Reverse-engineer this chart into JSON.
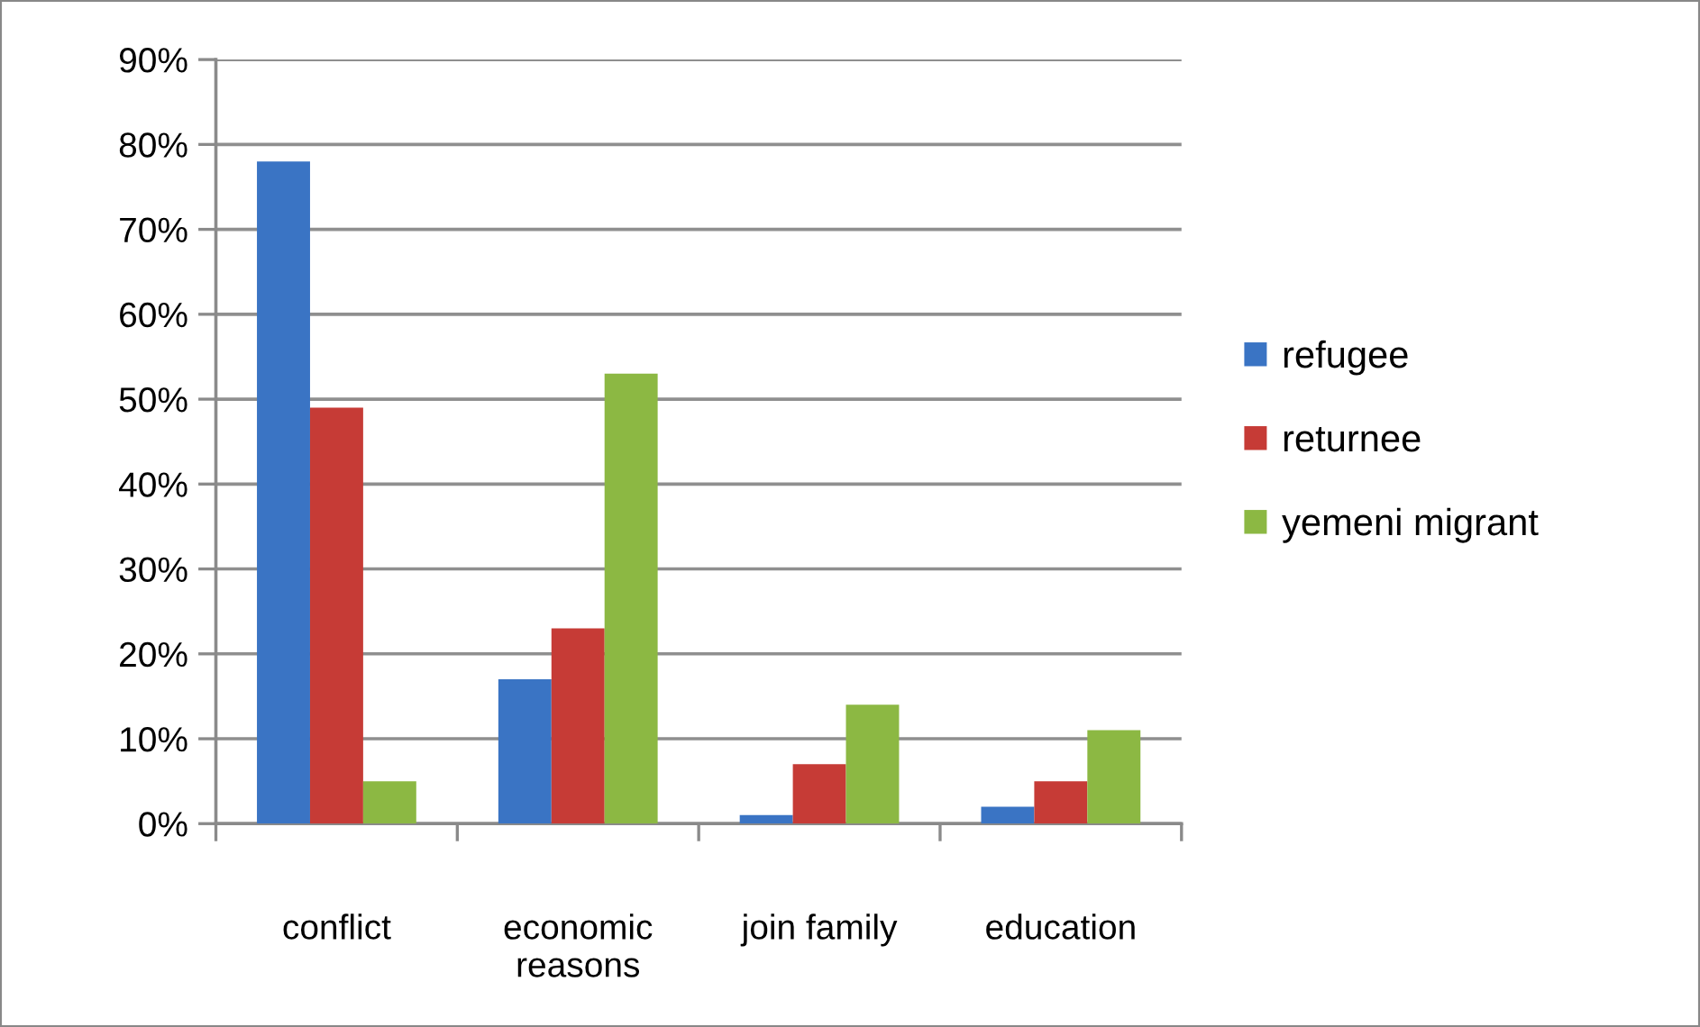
{
  "chart_data": {
    "type": "bar",
    "categories": [
      "conflict",
      "economic\nreasons",
      "join family",
      "education"
    ],
    "series": [
      {
        "name": "refugee",
        "color": "#3a74c4",
        "values": [
          78,
          17,
          1,
          2
        ]
      },
      {
        "name": "returnee",
        "color": "#c63b36",
        "values": [
          49,
          23,
          7,
          5
        ]
      },
      {
        "name": "yemeni migrant",
        "color": "#8cb843",
        "values": [
          5,
          53,
          14,
          11
        ]
      }
    ],
    "ylim": [
      0,
      90
    ],
    "yticks": [
      {
        "value": 0,
        "label": "0%"
      },
      {
        "value": 10,
        "label": "10%"
      },
      {
        "value": 20,
        "label": "20%"
      },
      {
        "value": 30,
        "label": "30%"
      },
      {
        "value": 40,
        "label": "40%"
      },
      {
        "value": 50,
        "label": "50%"
      },
      {
        "value": 60,
        "label": "60%"
      },
      {
        "value": 70,
        "label": "70%"
      },
      {
        "value": 80,
        "label": "80%"
      },
      {
        "value": 90,
        "label": "90%"
      }
    ],
    "grid": "y",
    "legend": "right"
  }
}
